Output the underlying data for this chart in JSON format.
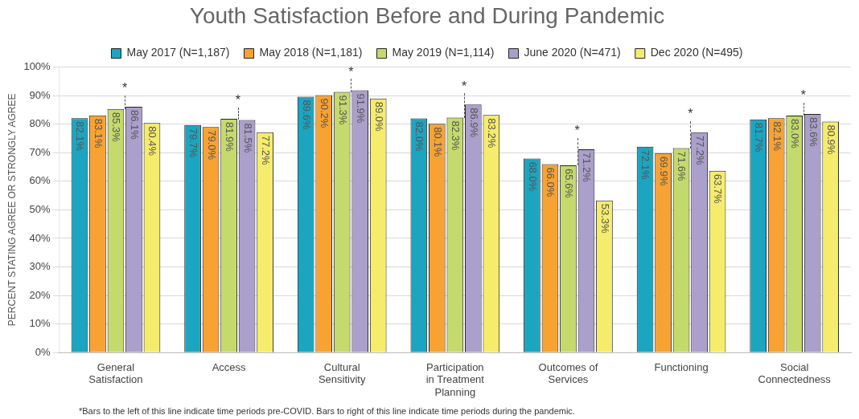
{
  "chart_data": {
    "type": "bar",
    "title": "Youth Satisfaction Before and During Pandemic",
    "ylabel": "PERCENT STATING AGREE OR STRONGLY AGREE",
    "categories": [
      "General Satisfaction",
      "Access",
      "Cultural Sensitivity",
      "Participation in Treatment Planning",
      "Outcomes of Services",
      "Functioning",
      "Social Connectedness"
    ],
    "series": [
      {
        "name": "May 2017 (N=1,187)",
        "color": "#1ba5c1",
        "values": [
          82.1,
          79.7,
          89.6,
          82.0,
          68.0,
          72.1,
          81.7
        ],
        "value_labels": [
          "82.1%",
          "79.7%",
          "89.6%",
          "82.0%",
          "68.0%",
          "72.1%",
          "81.7%"
        ]
      },
      {
        "name": "May 2018 (N=1,181)",
        "color": "#f7a233",
        "values": [
          83.1,
          79.0,
          90.2,
          80.1,
          66.0,
          69.9,
          82.1
        ],
        "value_labels": [
          "83.1%",
          "79.0%",
          "90.2%",
          "80.1%",
          "66.0%",
          "69.9%",
          "82.1%"
        ]
      },
      {
        "name": "May 2019 (N=1,114)",
        "color": "#c5da6c",
        "values": [
          85.3,
          81.9,
          91.3,
          82.3,
          65.6,
          71.6,
          83.0
        ],
        "value_labels": [
          "85.3%",
          "81.9%",
          "91.3%",
          "82.3%",
          "65.6%",
          "71.6%",
          "83.0%"
        ]
      },
      {
        "name": "June 2020 (N=471)",
        "color": "#ab9fcb",
        "values": [
          86.1,
          81.5,
          91.9,
          86.9,
          71.2,
          77.2,
          83.6
        ],
        "value_labels": [
          "86.1%",
          "81.5%",
          "91.9%",
          "86.9%",
          "71.2%",
          "77.2%",
          "83.6%"
        ]
      },
      {
        "name": "Dec 2020 (N=495)",
        "color": "#f6ec6c",
        "values": [
          80.4,
          77.2,
          89.0,
          83.2,
          53.3,
          63.7,
          80.9
        ],
        "value_labels": [
          "80.4%",
          "77.2%",
          "89.0%",
          "83.2%",
          "53.3%",
          "63.7%",
          "80.9%"
        ]
      }
    ],
    "ylim": [
      0,
      100
    ],
    "yticks": [
      {
        "value": 0,
        "label": "0%"
      },
      {
        "value": 10,
        "label": "10%"
      },
      {
        "value": 20,
        "label": "20%"
      },
      {
        "value": 30,
        "label": "30%"
      },
      {
        "value": 40,
        "label": "40%"
      },
      {
        "value": 50,
        "label": "50%"
      },
      {
        "value": 60,
        "label": "60%"
      },
      {
        "value": 70,
        "label": "70%"
      },
      {
        "value": 80,
        "label": "80%"
      },
      {
        "value": 90,
        "label": "90%"
      },
      {
        "value": 100,
        "label": "100%"
      }
    ],
    "grid": "y",
    "legend": "top",
    "annotations": [
      "*",
      "*",
      "*",
      "*",
      "*",
      "*",
      "*",
      "*Bars to the left of this line indicate time periods pre-COVID. Bars to right of this line indicate time periods during the pandemic."
    ]
  }
}
